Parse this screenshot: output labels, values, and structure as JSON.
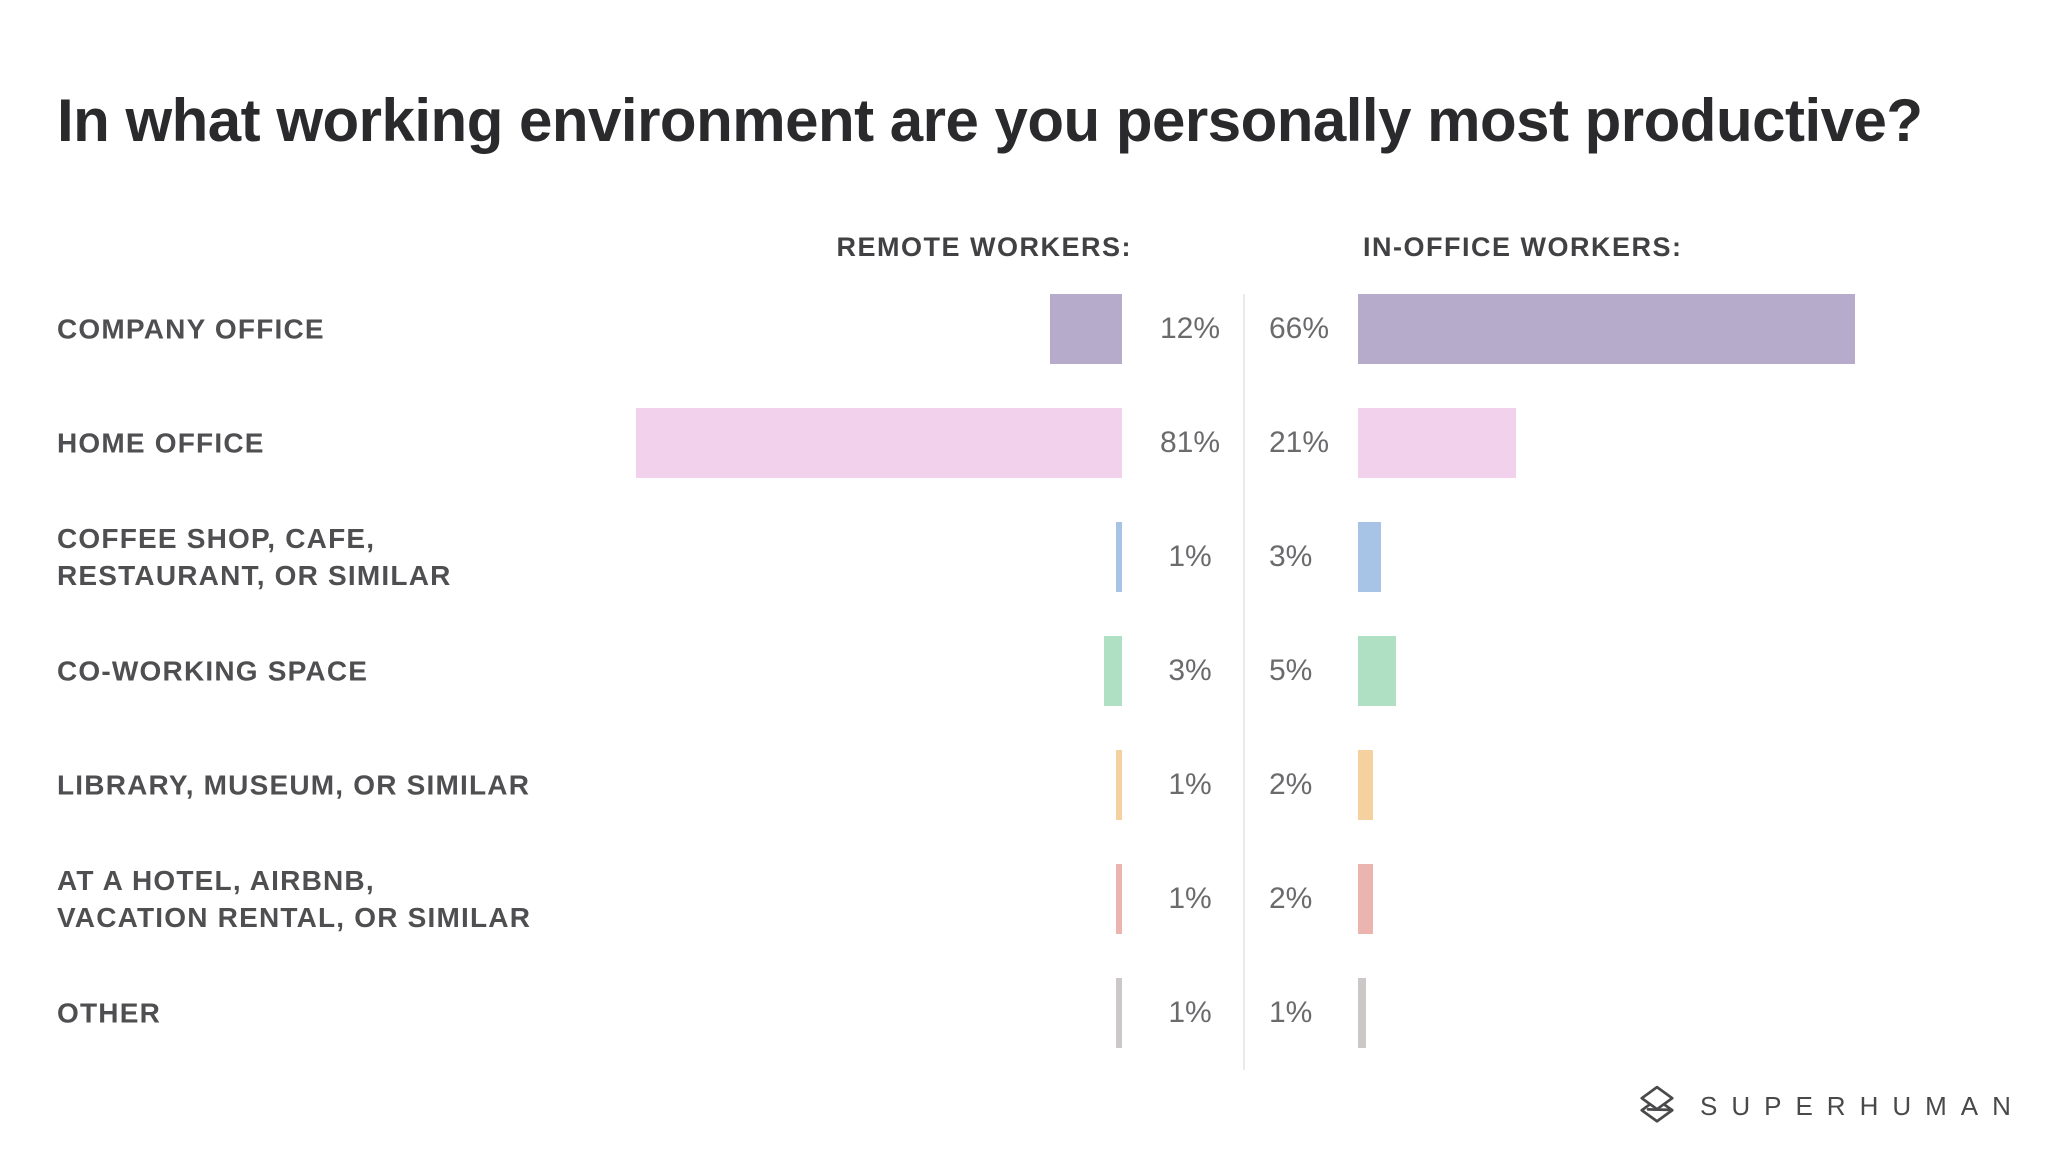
{
  "title": "In what working environment are you personally most productive?",
  "headers": {
    "remote": "REMOTE WORKERS:",
    "office": "IN-OFFICE WORKERS:"
  },
  "rows": [
    {
      "label_lines": [
        "COMPANY OFFICE"
      ],
      "remote_value": 12,
      "office_value": 66,
      "remote_text": "12%",
      "office_text": "66%",
      "color": "#b7abcc"
    },
    {
      "label_lines": [
        "HOME OFFICE"
      ],
      "remote_value": 81,
      "office_value": 21,
      "remote_text": "81%",
      "office_text": "21%",
      "color": "#f2d1ec"
    },
    {
      "label_lines": [
        "COFFEE SHOP, CAFE,",
        "RESTAURANT, OR SIMILAR"
      ],
      "remote_value": 1,
      "office_value": 3,
      "remote_text": "1%",
      "office_text": "3%",
      "color": "#a7c3e5"
    },
    {
      "label_lines": [
        "CO-WORKING SPACE"
      ],
      "remote_value": 3,
      "office_value": 5,
      "remote_text": "3%",
      "office_text": "5%",
      "color": "#afe0c4"
    },
    {
      "label_lines": [
        "LIBRARY, MUSEUM, OR SIMILAR"
      ],
      "remote_value": 1,
      "office_value": 2,
      "remote_text": "1%",
      "office_text": "2%",
      "color": "#f6d1a0"
    },
    {
      "label_lines": [
        "AT A HOTEL, AIRBNB,",
        "VACATION RENTAL, OR SIMILAR"
      ],
      "remote_value": 1,
      "office_value": 2,
      "remote_text": "1%",
      "office_text": "2%",
      "color": "#ecb4ae"
    },
    {
      "label_lines": [
        "OTHER"
      ],
      "remote_value": 1,
      "office_value": 1,
      "remote_text": "1%",
      "office_text": "1%",
      "color": "#ccc8c8"
    }
  ],
  "chart_data": {
    "type": "bar",
    "orientation": "horizontal",
    "title": "In what working environment are you personally most productive?",
    "categories": [
      "COMPANY OFFICE",
      "HOME OFFICE",
      "COFFEE SHOP, CAFE, RESTAURANT, OR SIMILAR",
      "CO-WORKING SPACE",
      "LIBRARY, MUSEUM, OR SIMILAR",
      "AT A HOTEL, AIRBNB, VACATION RENTAL, OR SIMILAR",
      "OTHER"
    ],
    "series": [
      {
        "name": "REMOTE WORKERS",
        "values": [
          12,
          81,
          1,
          3,
          1,
          1,
          1
        ]
      },
      {
        "name": "IN-OFFICE WORKERS",
        "values": [
          66,
          21,
          3,
          5,
          2,
          2,
          1
        ]
      }
    ],
    "value_suffix": "%",
    "bar_colors_by_category": [
      "#b7abcc",
      "#f2d1ec",
      "#a7c3e5",
      "#afe0c4",
      "#f6d1a0",
      "#ecb4ae",
      "#ccc8c8"
    ],
    "layout_hint": "mirrored columns: remote bars grow leftward from center divider, in-office bars grow rightward; value labels flank a thin vertical divider",
    "grid": false,
    "legend_position": "column headers above bars"
  },
  "branding": {
    "name": "SUPERHUMAN",
    "icon": "superhuman-stacked-diamonds-icon",
    "color": "#49494c"
  },
  "colors": {
    "title": "#2a2a2c",
    "category_label": "#4f4f52",
    "column_header": "#414144",
    "percent_text": "#6b6b6e",
    "divider": "#eaeaea",
    "background": "#ffffff"
  }
}
